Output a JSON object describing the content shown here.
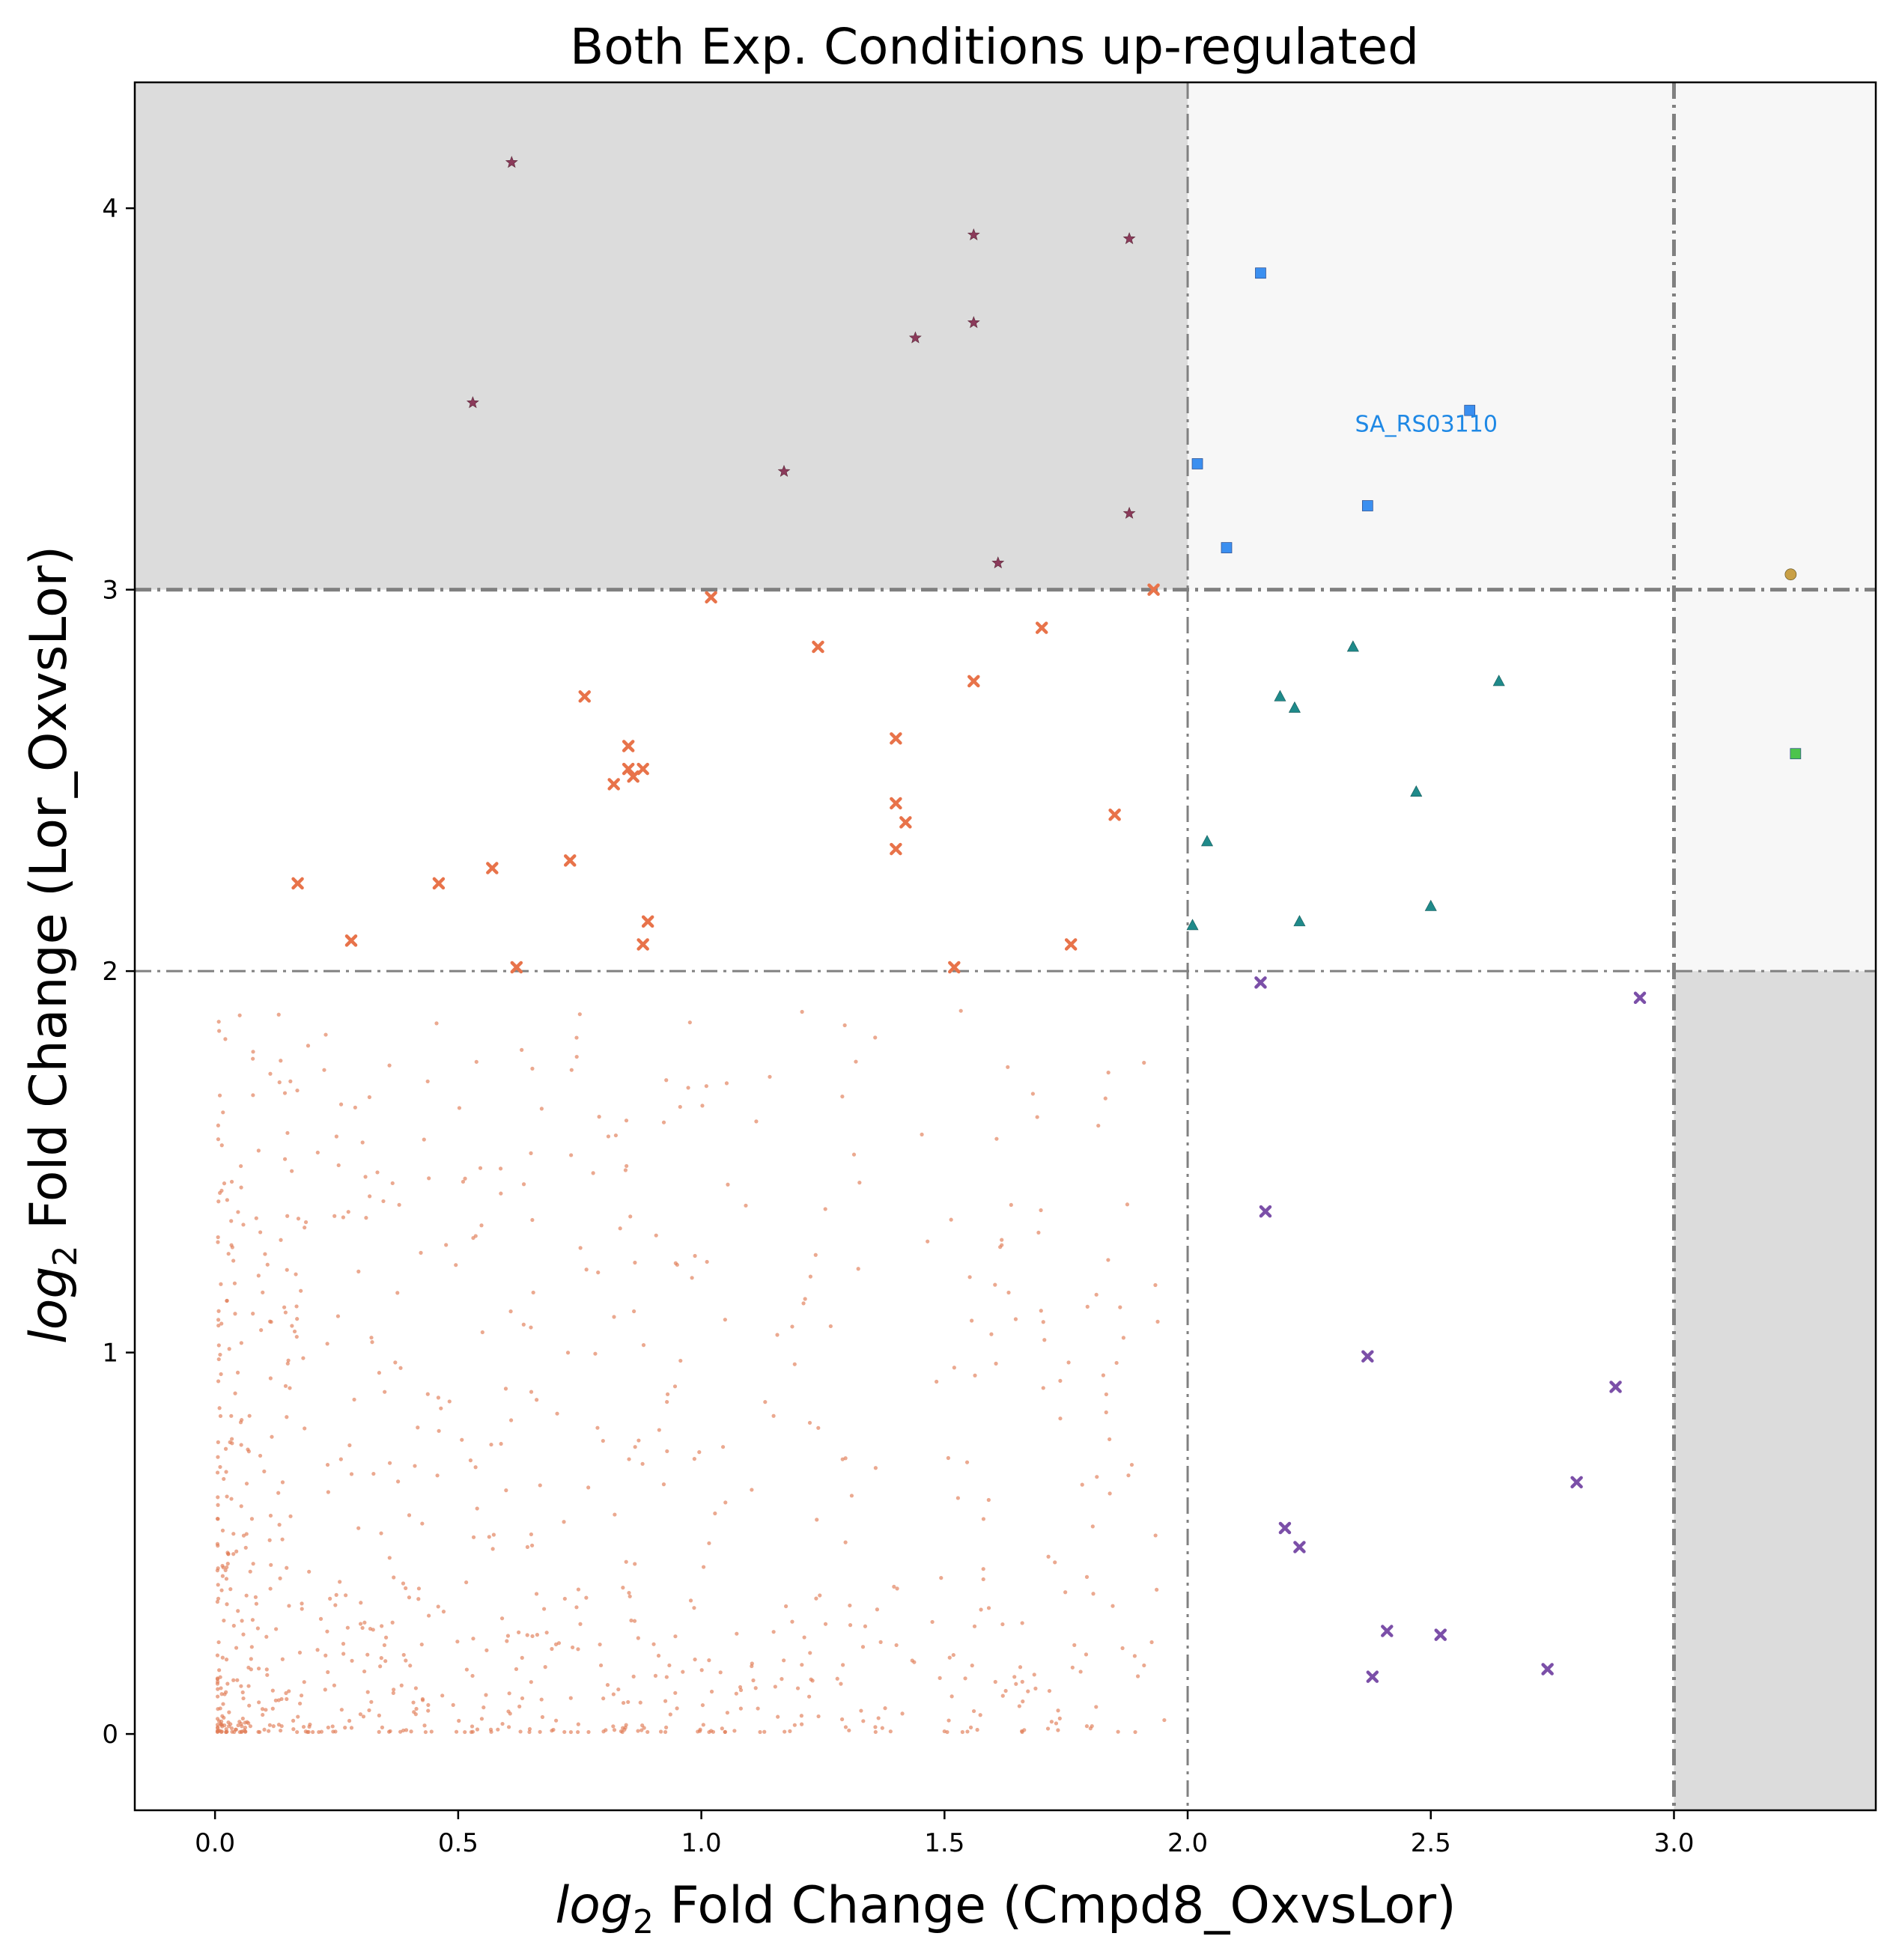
{
  "chart_data": {
    "type": "scatter",
    "title": "Both Exp. Conditions up-regulated",
    "xlabel": {
      "prefix": "log",
      "sub": "2",
      "rest": " Fold Change (Cmpd8_OxvsLor)"
    },
    "ylabel": {
      "prefix": "log",
      "sub": "2",
      "rest": " Fold Change (Lor_OxvsLor)"
    },
    "xlim": [
      -0.165,
      3.415
    ],
    "ylim": [
      -0.2,
      4.33
    ],
    "xticks": [
      0.0,
      0.5,
      1.0,
      1.5,
      2.0,
      2.5,
      3.0
    ],
    "xtick_labels": [
      "0.0",
      "0.5",
      "1.0",
      "1.5",
      "2.0",
      "2.5",
      "3.0"
    ],
    "yticks": [
      0,
      1,
      2,
      3,
      4
    ],
    "ytick_labels": [
      "0",
      "1",
      "2",
      "3",
      "4"
    ],
    "grid": false,
    "threshold_lines": {
      "x": [
        2.0,
        3.0
      ],
      "y": [
        2.0,
        3.0
      ]
    },
    "shaded_regions": [
      {
        "x": [
          -0.165,
          2.0
        ],
        "y": [
          3.0,
          4.33
        ],
        "color": "#dcdcdc"
      },
      {
        "x": [
          3.0,
          3.415
        ],
        "y": [
          -0.2,
          2.0
        ],
        "color": "#dcdcdc"
      },
      {
        "x": [
          2.0,
          3.415
        ],
        "y": [
          3.0,
          4.33
        ],
        "color": "#f7f7f7"
      },
      {
        "x": [
          3.0,
          3.415
        ],
        "y": [
          2.0,
          3.0
        ],
        "color": "#f7f7f7"
      }
    ],
    "annotations": [
      {
        "text": "SA_RS03110",
        "x": 2.58,
        "y": 3.46,
        "color": "#1e88e5"
      }
    ],
    "background_points": {
      "count": 900,
      "x_range": [
        0.0,
        2.0
      ],
      "y_range": [
        0.0,
        2.0
      ],
      "color": "#e07b54",
      "description_density": "dense near origin"
    },
    "series": [
      {
        "marker": "star",
        "color": "#8b3a5a",
        "x": [
          0.61,
          1.56,
          1.88,
          1.44,
          1.56,
          0.53,
          1.17,
          1.88,
          1.61
        ],
        "y": [
          4.12,
          3.93,
          3.92,
          3.66,
          3.7,
          3.49,
          3.31,
          3.2,
          3.07
        ]
      },
      {
        "marker": "square",
        "color": "#3b8ff0",
        "x": [
          2.15,
          2.58,
          2.02,
          2.37,
          2.08
        ],
        "y": [
          3.83,
          3.47,
          3.33,
          3.22,
          3.11
        ]
      },
      {
        "marker": "circle",
        "color": "#c9a046",
        "x": [
          3.24
        ],
        "y": [
          3.04
        ]
      },
      {
        "marker": "square",
        "color": "#4cc44c",
        "x": [
          3.25
        ],
        "y": [
          2.57
        ]
      },
      {
        "marker": "triangle",
        "color": "#1f8a8a",
        "x": [
          2.34,
          2.64,
          2.19,
          2.22,
          2.47,
          2.04,
          2.5,
          2.23,
          2.01
        ],
        "y": [
          2.85,
          2.76,
          2.72,
          2.69,
          2.47,
          2.34,
          2.17,
          2.13,
          2.12
        ]
      },
      {
        "marker": "x",
        "color": "#e8734a",
        "x": [
          1.02,
          1.93,
          1.7,
          1.24,
          0.76,
          1.56,
          1.4,
          0.85,
          0.88,
          0.85,
          0.86,
          0.82,
          1.4,
          1.42,
          1.85,
          1.4,
          0.73,
          0.57,
          0.46,
          0.17,
          0.89,
          0.28,
          0.88,
          1.76,
          0.62,
          1.52
        ],
        "y": [
          2.98,
          3.0,
          2.9,
          2.85,
          2.72,
          2.76,
          2.61,
          2.59,
          2.53,
          2.53,
          2.51,
          2.49,
          2.44,
          2.39,
          2.41,
          2.32,
          2.29,
          2.27,
          2.23,
          2.23,
          2.13,
          2.08,
          2.07,
          2.07,
          2.01,
          2.01
        ]
      },
      {
        "marker": "x",
        "color": "#7b4fa8",
        "x": [
          2.15,
          2.93,
          2.16,
          2.37,
          2.88,
          2.8,
          2.2,
          2.23,
          2.41,
          2.52,
          2.74,
          2.38
        ],
        "y": [
          1.97,
          1.93,
          1.37,
          0.99,
          0.91,
          0.66,
          0.54,
          0.49,
          0.27,
          0.26,
          0.17,
          0.15
        ]
      }
    ]
  }
}
